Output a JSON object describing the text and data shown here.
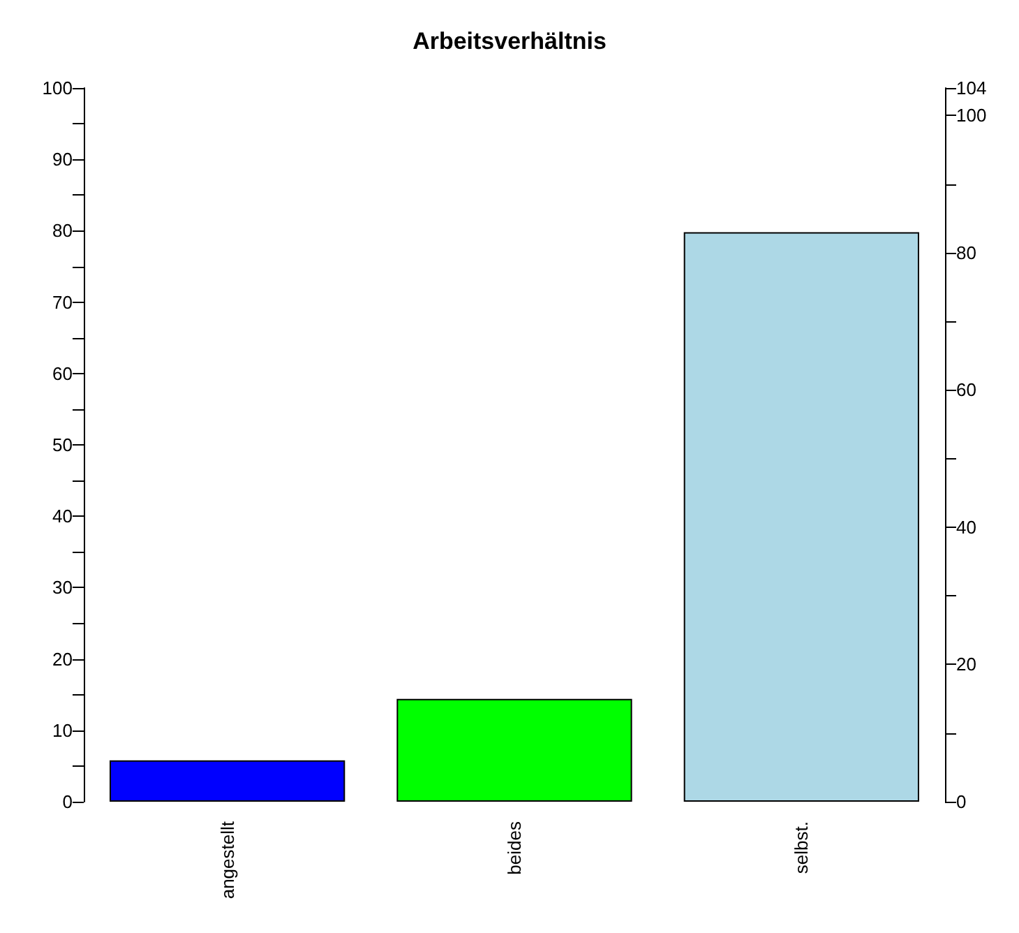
{
  "chart_data": {
    "type": "bar",
    "title": "Arbeitsverhältnis",
    "categories": [
      "angestellt",
      "beides",
      "selbst."
    ],
    "values": [
      5.8,
      14.4,
      79.8
    ],
    "colors": [
      "#0000ff",
      "#00ff00",
      "#add8e6"
    ],
    "ylim": [
      0,
      100
    ],
    "yticks": [
      0,
      {
        "value": 5,
        "label": null
      },
      10,
      {
        "value": 15,
        "label": null
      },
      20,
      {
        "value": 25,
        "label": null
      },
      30,
      {
        "value": 35,
        "label": null
      },
      40,
      {
        "value": 45,
        "label": null
      },
      50,
      {
        "value": 55,
        "label": null
      },
      60,
      {
        "value": 65,
        "label": null
      },
      70,
      {
        "value": 75,
        "label": null
      },
      80,
      {
        "value": 85,
        "label": null
      },
      90,
      {
        "value": 95,
        "label": null
      },
      100
    ],
    "y2lim": [
      0,
      104
    ],
    "y2ticks": [
      0,
      {
        "value": 10,
        "label": null
      },
      20,
      {
        "value": 30,
        "label": null
      },
      40,
      {
        "value": 50,
        "label": null
      },
      60,
      {
        "value": 70,
        "label": null
      },
      80,
      {
        "value": 90,
        "label": null
      },
      100,
      104
    ],
    "grid": false
  }
}
